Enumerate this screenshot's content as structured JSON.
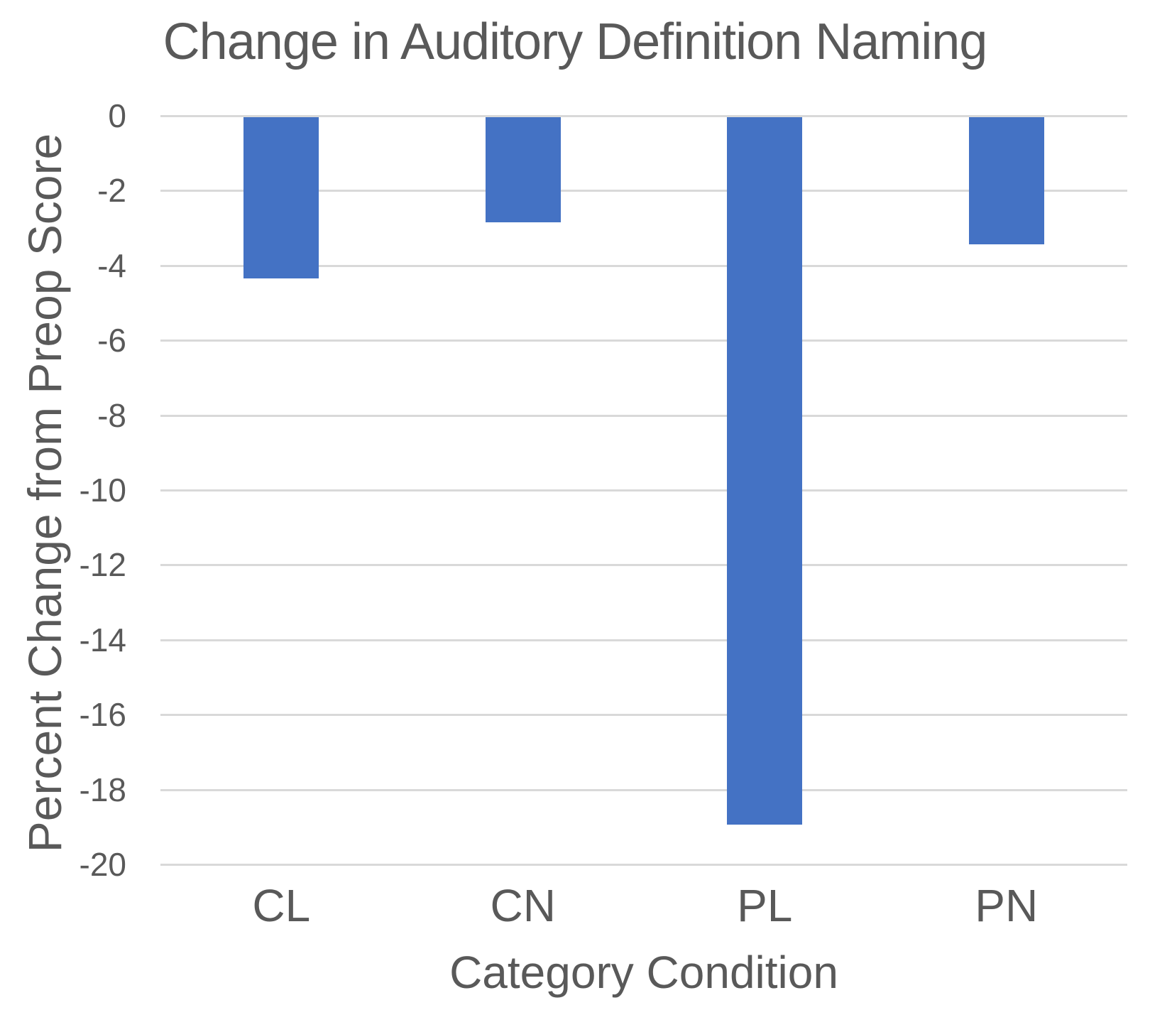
{
  "chart_data": {
    "type": "bar",
    "title": "Change in Auditory Definition Naming",
    "xlabel": "Category Condition",
    "ylabel": "Percent Change from Preop Score",
    "categories": [
      "CL",
      "CN",
      "PL",
      "PN"
    ],
    "values": [
      -4.3,
      -2.8,
      -18.9,
      -3.4
    ],
    "series_name": "Percent change from preop score",
    "ylim": [
      -20,
      0
    ],
    "ytick_step": 2,
    "ytick_labels": [
      "0",
      "-2",
      "-4",
      "-6",
      "-8",
      "-10",
      "-12",
      "-14",
      "-16",
      "-18",
      "-20"
    ],
    "grid": true,
    "legend_position": "none",
    "bar_color": "#4472C4",
    "gridline_color": "#D9D9D9",
    "text_color": "#595959"
  }
}
